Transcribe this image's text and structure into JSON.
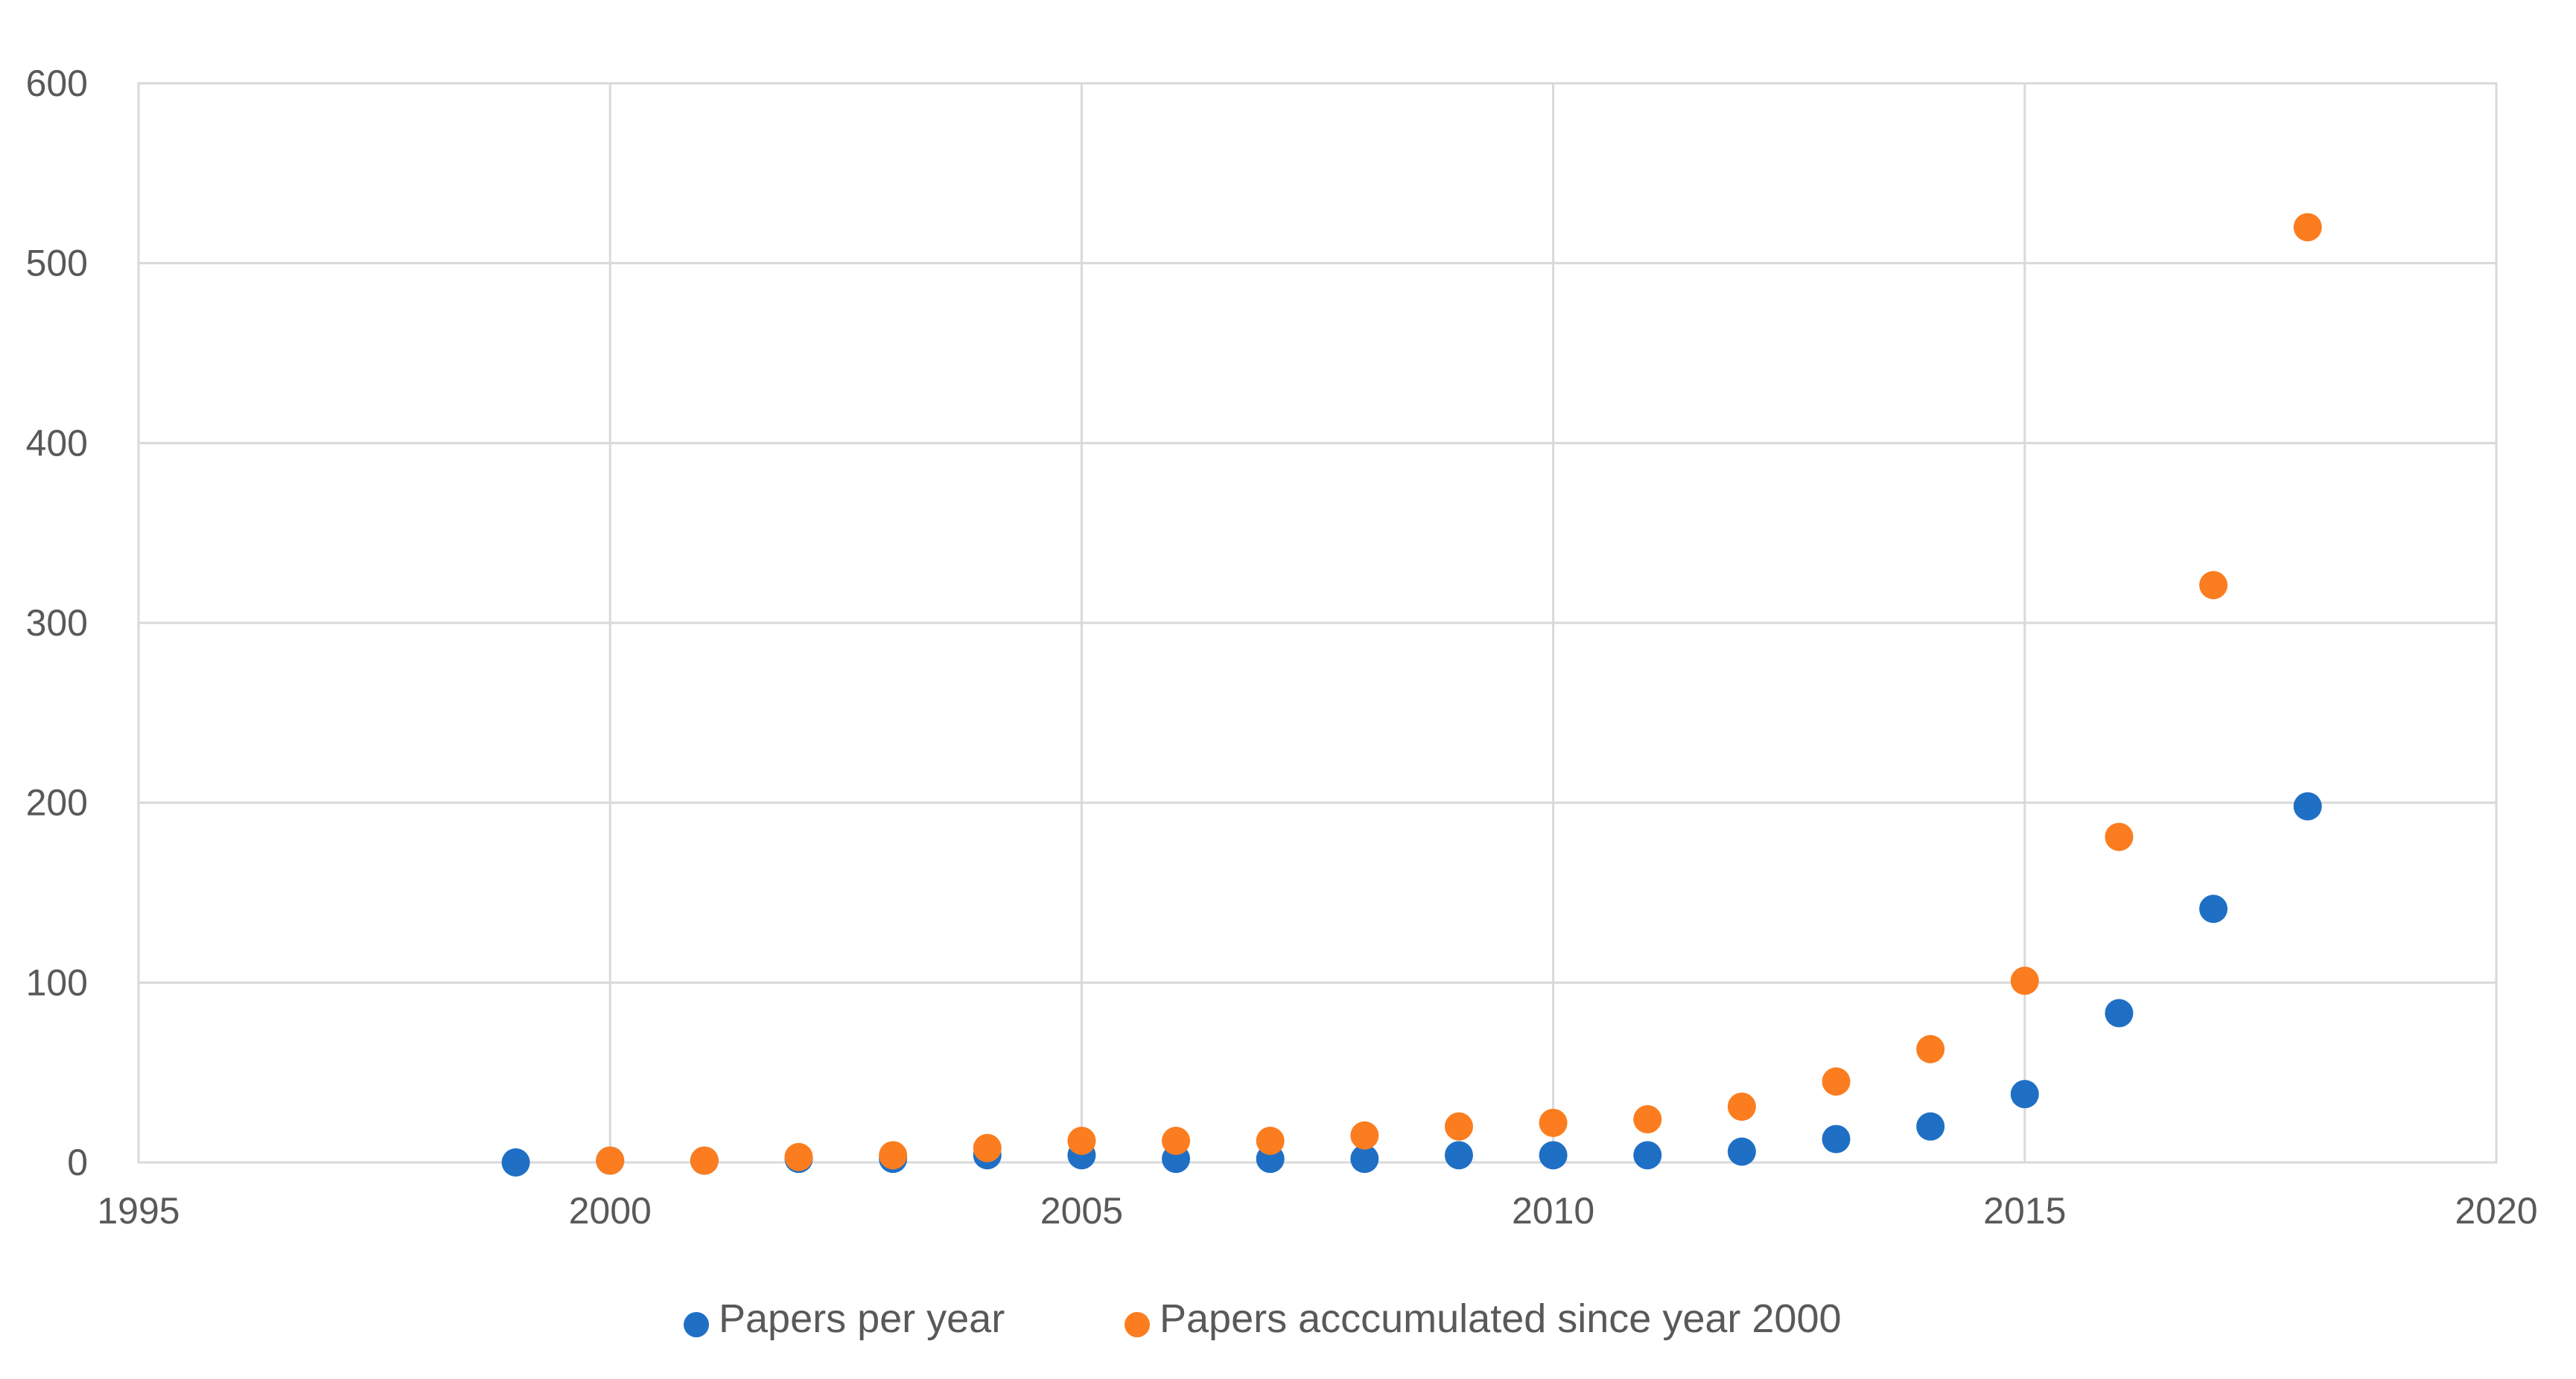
{
  "chart_data": {
    "type": "scatter",
    "title": "",
    "xlabel": "",
    "ylabel": "",
    "xlim": [
      1995,
      2020
    ],
    "ylim": [
      0,
      600
    ],
    "x_ticks": [
      1995,
      2000,
      2005,
      2010,
      2015,
      2020
    ],
    "y_ticks": [
      0,
      100,
      200,
      300,
      400,
      500,
      600
    ],
    "x_tick_labels": [
      "1995",
      "2000",
      "2005",
      "2010",
      "2015",
      "2020"
    ],
    "y_tick_labels": [
      "0",
      "100",
      "200",
      "300",
      "400",
      "500",
      "600"
    ],
    "grid": true,
    "legend_position": "bottom",
    "series": [
      {
        "name": "Papers per year",
        "color": "#1f6fc5",
        "points": [
          [
            1999,
            0
          ],
          [
            2000,
            1
          ],
          [
            2001,
            1
          ],
          [
            2002,
            2
          ],
          [
            2003,
            2
          ],
          [
            2004,
            4
          ],
          [
            2005,
            4
          ],
          [
            2006,
            2
          ],
          [
            2007,
            2
          ],
          [
            2008,
            2
          ],
          [
            2009,
            4
          ],
          [
            2010,
            4
          ],
          [
            2011,
            4
          ],
          [
            2012,
            6
          ],
          [
            2013,
            13
          ],
          [
            2014,
            20
          ],
          [
            2015,
            38
          ],
          [
            2016,
            83
          ],
          [
            2017,
            141
          ],
          [
            2018,
            198
          ]
        ]
      },
      {
        "name": "Papers acccumulated since year 2000",
        "color": "#fb7d1f",
        "points": [
          [
            2000,
            1
          ],
          [
            2001,
            1
          ],
          [
            2002,
            3
          ],
          [
            2003,
            4
          ],
          [
            2004,
            8
          ],
          [
            2005,
            12
          ],
          [
            2006,
            12
          ],
          [
            2007,
            12
          ],
          [
            2008,
            15
          ],
          [
            2009,
            20
          ],
          [
            2010,
            22
          ],
          [
            2011,
            24
          ],
          [
            2012,
            31
          ],
          [
            2013,
            45
          ],
          [
            2014,
            63
          ],
          [
            2015,
            101
          ],
          [
            2016,
            181
          ],
          [
            2017,
            321
          ],
          [
            2018,
            520
          ]
        ]
      }
    ]
  }
}
